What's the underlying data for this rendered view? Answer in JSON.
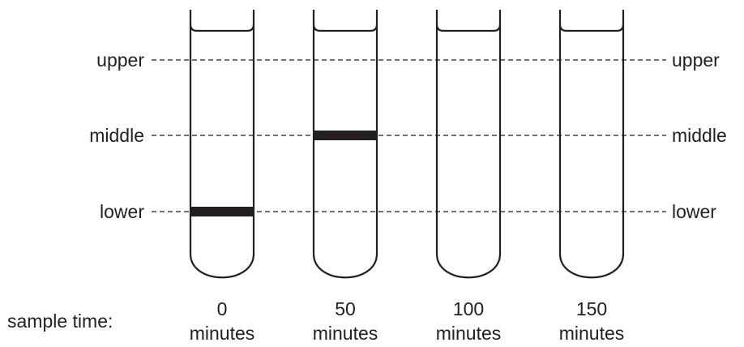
{
  "levels": {
    "upper": "upper",
    "middle": "middle",
    "lower": "lower"
  },
  "sample_time_label": "sample time:",
  "samples": [
    {
      "time": "0",
      "unit": "minutes",
      "band_level": "lower"
    },
    {
      "time": "50",
      "unit": "minutes",
      "band_level": "middle"
    },
    {
      "time": "100",
      "unit": "minutes",
      "band_level": "none"
    },
    {
      "time": "150",
      "unit": "minutes",
      "band_level": "none"
    }
  ]
}
